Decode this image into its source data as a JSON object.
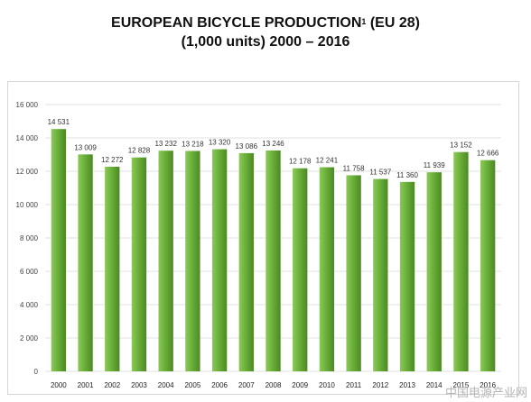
{
  "title_line1": "EUROPEAN BICYCLE PRODUCTION",
  "title_sup": "1",
  "title_line1_suffix": " (EU 28)",
  "title_line2": "(1,000 units) 2000 – 2016",
  "watermark": "中国电源产业网",
  "colors": {
    "bar": "#6aaf3a",
    "bar_dark": "#4b8a22",
    "bar_light": "#8cc95a",
    "grid": "#e2e2e2"
  },
  "chart_data": {
    "type": "bar",
    "title": "EUROPEAN BICYCLE PRODUCTION1 (EU 28) (1,000 units) 2000 – 2016",
    "xlabel": "",
    "ylabel": "",
    "ylim": [
      0,
      16000
    ],
    "yticks": [
      0,
      2000,
      4000,
      6000,
      8000,
      10000,
      12000,
      14000,
      16000
    ],
    "ytick_labels": [
      "0",
      "2 000",
      "4 000",
      "6 000",
      "8 000",
      "10 000",
      "12 000",
      "14 000",
      "16 000"
    ],
    "grid": true,
    "categories": [
      "2000",
      "2001",
      "2002",
      "2003",
      "2004",
      "2005",
      "2006",
      "2007",
      "2008",
      "2009",
      "2010",
      "2011",
      "2012",
      "2013",
      "2014",
      "2015",
      "2016"
    ],
    "values": [
      14531,
      13009,
      12272,
      12828,
      13232,
      13218,
      13320,
      13086,
      13246,
      12178,
      12241,
      11758,
      11537,
      11360,
      11939,
      13152,
      12666
    ],
    "value_labels": [
      "14 531",
      "13 009",
      "12 272",
      "12 828",
      "13 232",
      "13 218",
      "13 320",
      "13 086",
      "13 246",
      "12 178",
      "12 241",
      "11 758",
      "11 537",
      "11 360",
      "11 939",
      "13 152",
      "12 666"
    ]
  }
}
